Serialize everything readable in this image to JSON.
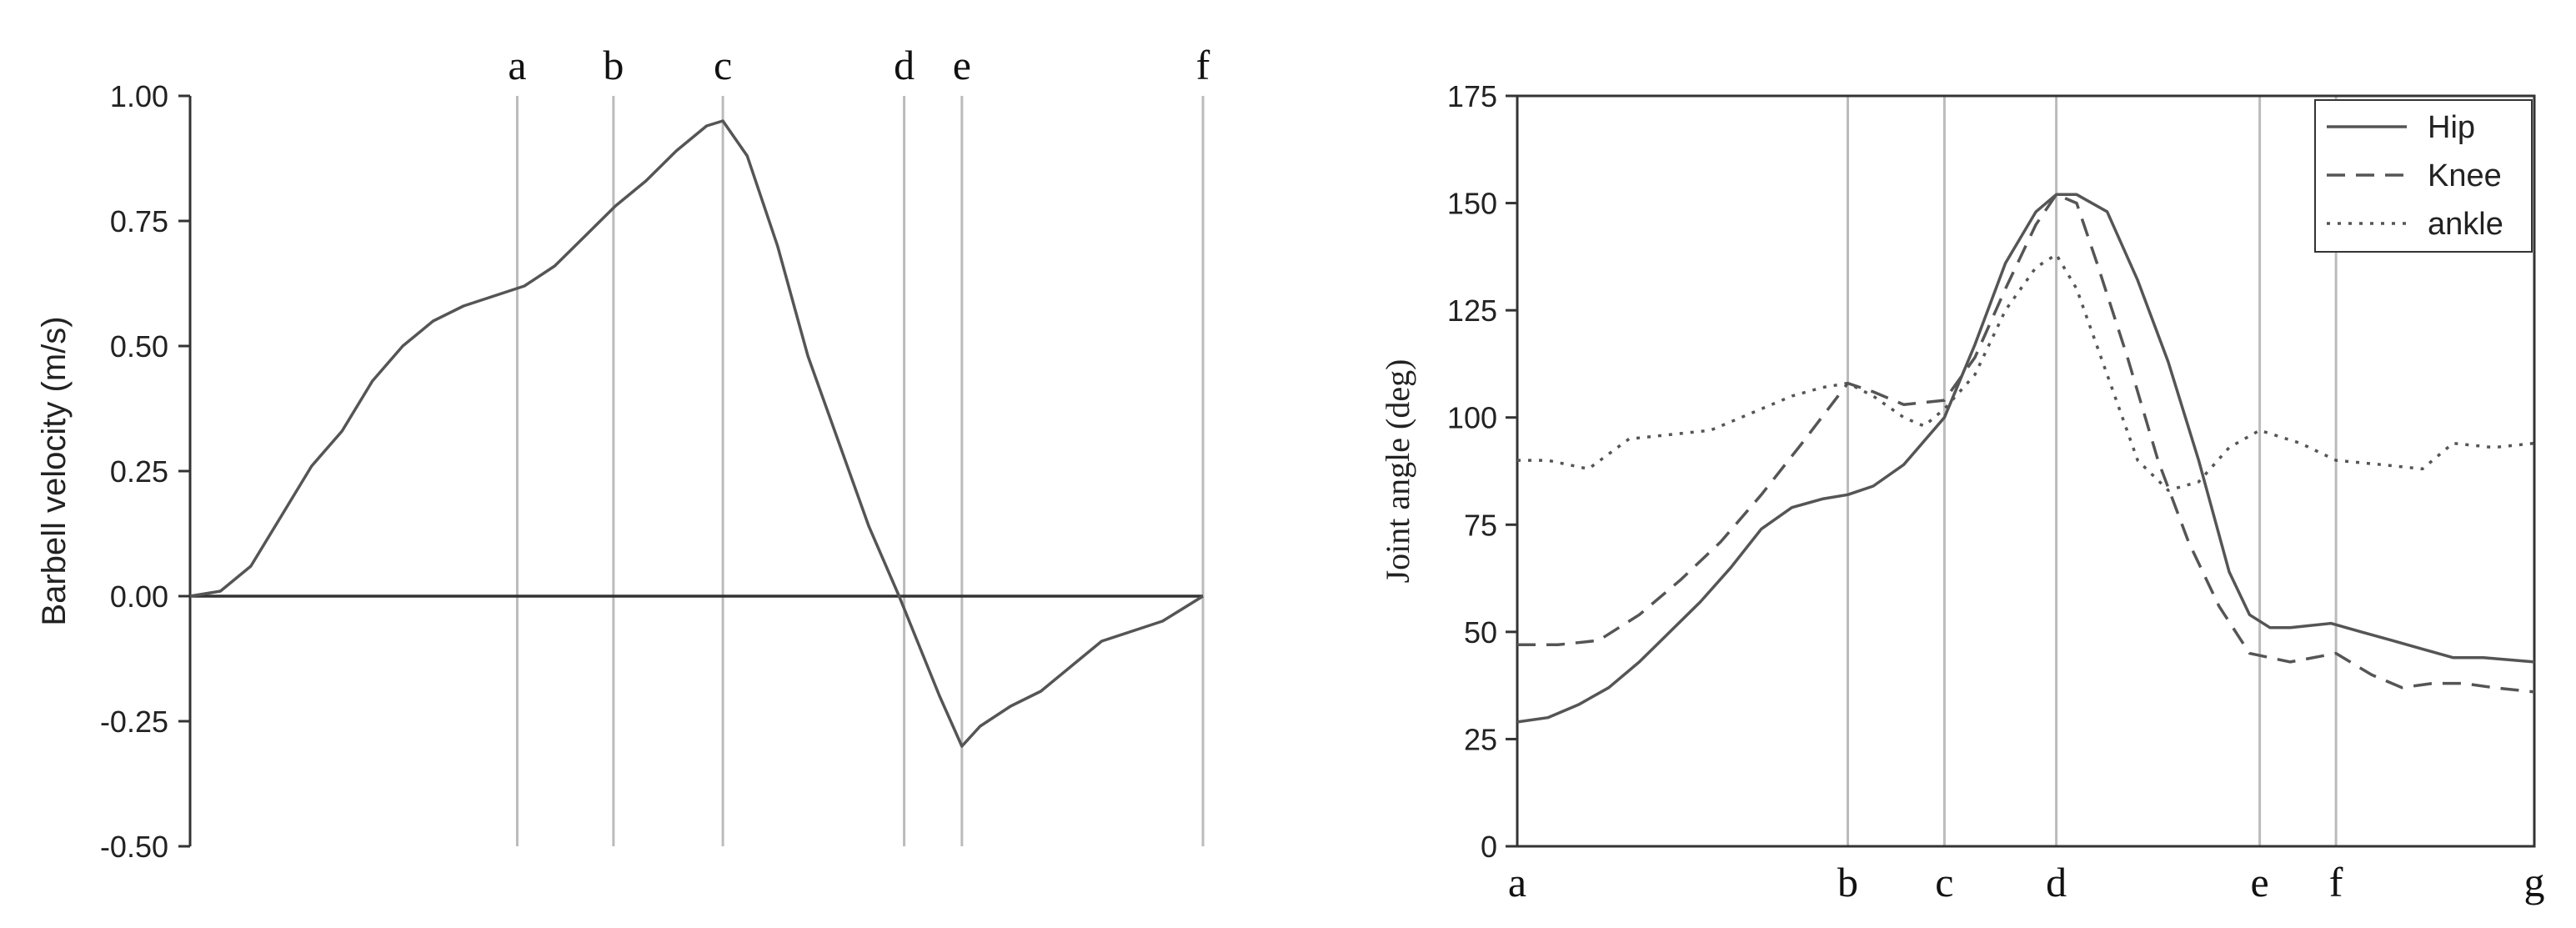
{
  "chart_data": [
    {
      "type": "line",
      "title": "",
      "xlabel": "",
      "ylabel": "Barbell velocity (m/s)",
      "ylim": [
        -0.5,
        1.0
      ],
      "xlim": [
        0,
        100
      ],
      "yticks": [
        "1.00",
        "0.75",
        "0.50",
        "0.25",
        "0.00",
        "-0.25",
        "-0.50"
      ],
      "ytick_values": [
        1.0,
        0.75,
        0.5,
        0.25,
        0.0,
        -0.25,
        -0.5
      ],
      "grid": false,
      "legend": "none",
      "zero_line": true,
      "markers": [
        {
          "label": "a",
          "x": 32.3
        },
        {
          "label": "b",
          "x": 41.8
        },
        {
          "label": "c",
          "x": 52.6
        },
        {
          "label": "d",
          "x": 70.5
        },
        {
          "label": "e",
          "x": 76.2
        },
        {
          "label": "f",
          "x": 100
        }
      ],
      "series": [
        {
          "color": "#555555",
          "dash": "solid",
          "x": [
            0,
            3,
            6,
            9,
            12,
            15,
            18,
            21,
            24,
            27,
            30,
            33,
            36,
            39,
            42,
            45,
            48,
            51,
            52.6,
            55,
            58,
            61,
            64,
            67,
            70,
            72,
            74,
            76.2,
            78,
            81,
            84,
            87,
            90,
            93,
            96,
            100
          ],
          "values": [
            0,
            0.01,
            0.06,
            0.16,
            0.26,
            0.33,
            0.43,
            0.5,
            0.55,
            0.58,
            0.6,
            0.62,
            0.66,
            0.72,
            0.78,
            0.83,
            0.89,
            0.94,
            0.95,
            0.88,
            0.7,
            0.48,
            0.31,
            0.14,
            0.0,
            -0.1,
            -0.2,
            -0.3,
            -0.26,
            -0.22,
            -0.19,
            -0.14,
            -0.09,
            -0.07,
            -0.05,
            0
          ]
        }
      ]
    },
    {
      "type": "line",
      "title": "",
      "xlabel": "",
      "ylabel": "Joint angle (deg)",
      "ylim": [
        0,
        175
      ],
      "xlim": [
        0,
        100
      ],
      "yticks": [
        "175",
        "150",
        "125",
        "100",
        "75",
        "50",
        "25",
        "0"
      ],
      "ytick_values": [
        175,
        150,
        125,
        100,
        75,
        50,
        25,
        0
      ],
      "grid": false,
      "legend": "top-right",
      "markers": [
        {
          "label": "a",
          "x": 0
        },
        {
          "label": "b",
          "x": 32.5
        },
        {
          "label": "c",
          "x": 42
        },
        {
          "label": "d",
          "x": 53
        },
        {
          "label": "e",
          "x": 73
        },
        {
          "label": "f",
          "x": 80.5
        },
        {
          "label": "g",
          "x": 100
        }
      ],
      "series": [
        {
          "name": "Hip",
          "color": "#555555",
          "dash": "solid",
          "x": [
            0,
            3,
            6,
            9,
            12,
            15,
            18,
            21,
            24,
            27,
            30,
            32.5,
            35,
            38,
            42,
            45,
            48,
            51,
            53,
            55,
            58,
            61,
            64,
            67,
            70,
            72,
            74,
            76,
            80,
            83,
            86,
            89,
            92,
            95,
            100
          ],
          "values": [
            29,
            30,
            33,
            37,
            43,
            50,
            57,
            65,
            74,
            79,
            81,
            82,
            84,
            89,
            100,
            117,
            136,
            148,
            152,
            152,
            148,
            132,
            113,
            90,
            64,
            54,
            51,
            51,
            52,
            50,
            48,
            46,
            44,
            44,
            43
          ]
        },
        {
          "name": "Knee",
          "color": "#555555",
          "dash": "dashed",
          "x": [
            0,
            4,
            8,
            12,
            16,
            20,
            24,
            28,
            32.5,
            35,
            38,
            42,
            45,
            48,
            51,
            53,
            55,
            57,
            60,
            63,
            66,
            69,
            72,
            76,
            80.5,
            84,
            87,
            90,
            93,
            96,
            100
          ],
          "values": [
            47,
            47,
            48,
            54,
            62,
            71,
            82,
            94,
            108,
            106,
            103,
            104,
            114,
            130,
            145,
            152,
            150,
            136,
            114,
            90,
            71,
            56,
            45,
            43,
            45,
            40,
            37,
            38,
            38,
            37,
            36
          ]
        },
        {
          "name": "ankle",
          "color": "#555555",
          "dash": "dotted",
          "x": [
            0,
            3,
            7,
            11,
            15,
            19,
            23,
            27,
            30,
            32.5,
            35,
            38,
            40,
            42,
            45,
            48,
            51,
            53,
            55,
            58,
            61,
            64,
            67,
            70,
            73,
            77,
            80.5,
            85,
            89,
            92,
            96,
            100
          ],
          "values": [
            90,
            90,
            88,
            95,
            96,
            97,
            101,
            105,
            107,
            108,
            105,
            100,
            98,
            102,
            110,
            125,
            135,
            138,
            130,
            110,
            90,
            83,
            85,
            93,
            97,
            94,
            90,
            89,
            88,
            94,
            93,
            94
          ]
        }
      ]
    }
  ]
}
